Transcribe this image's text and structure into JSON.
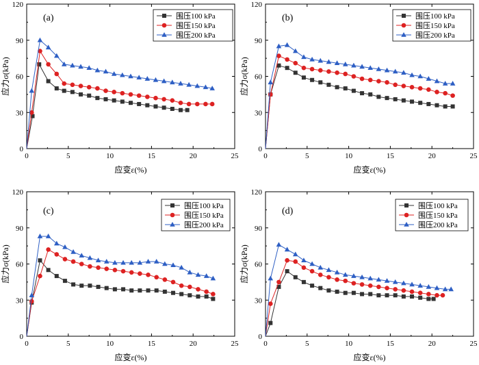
{
  "chart_data": [
    {
      "type": "line",
      "panel_label": "(a)",
      "xlabel": "应变ε(%)",
      "ylabel": "应力σ(kPa)",
      "xlim": [
        0,
        25
      ],
      "ylim": [
        0,
        120
      ],
      "xticks": [
        "0",
        "5",
        "10",
        "15",
        "20",
        "25"
      ],
      "yticks": [
        "0",
        "30",
        "60",
        "90",
        "120"
      ],
      "legend_position": "top-right",
      "series": [
        {
          "name": "围压100 kPa",
          "color": "#333333",
          "marker": "square",
          "x": [
            0,
            0.7,
            1.5,
            2.6,
            3.6,
            4.5,
            5.5,
            6.5,
            7.5,
            8.5,
            9.5,
            10.5,
            11.5,
            12.5,
            13.5,
            14.5,
            15.5,
            16.5,
            17.5,
            18.5,
            19.3
          ],
          "y": [
            0,
            27,
            70,
            56,
            50,
            48,
            47,
            45,
            44,
            42,
            41,
            40,
            39,
            38,
            37,
            36,
            35,
            34,
            33,
            32,
            32
          ]
        },
        {
          "name": "围压150 kPa",
          "color": "#dd2222",
          "marker": "circle",
          "x": [
            0,
            0.6,
            1.6,
            2.6,
            3.6,
            4.5,
            5.5,
            6.5,
            7.5,
            8.5,
            9.5,
            10.5,
            11.5,
            12.5,
            13.5,
            14.5,
            15.5,
            16.5,
            17.5,
            18.5,
            19.5,
            20.5,
            21.5,
            22.3
          ],
          "y": [
            0,
            30,
            81,
            70,
            62,
            54,
            53,
            52,
            51,
            50,
            48,
            47,
            46,
            45,
            44,
            43,
            42,
            41,
            40,
            38,
            37,
            37,
            37,
            37
          ]
        },
        {
          "name": "围压200 kPa",
          "color": "#2e5fc4",
          "marker": "triangle",
          "x": [
            0,
            0.6,
            1.6,
            2.6,
            3.6,
            4.5,
            5.5,
            6.5,
            7.5,
            8.5,
            9.5,
            10.5,
            11.5,
            12.5,
            13.5,
            14.5,
            15.5,
            16.5,
            17.5,
            18.5,
            19.5,
            20.5,
            21.5,
            22.3
          ],
          "y": [
            0,
            48,
            90,
            84,
            77,
            70,
            69,
            68,
            67,
            65,
            64,
            62,
            61,
            60,
            59,
            58,
            57,
            56,
            55,
            54,
            53,
            52,
            51,
            50
          ]
        }
      ]
    },
    {
      "type": "line",
      "panel_label": "(b)",
      "xlabel": "应变ε(%)",
      "ylabel": "应力σ(kPa)",
      "xlim": [
        0,
        25
      ],
      "ylim": [
        0,
        120
      ],
      "xticks": [
        "0",
        "5",
        "10",
        "15",
        "20",
        "25"
      ],
      "yticks": [
        "0",
        "30",
        "60",
        "90",
        "120"
      ],
      "legend_position": "top-right",
      "series": [
        {
          "name": "围压100 kPa",
          "color": "#333333",
          "marker": "square",
          "x": [
            0,
            0.6,
            1.6,
            2.6,
            3.6,
            4.6,
            5.6,
            6.6,
            7.6,
            8.6,
            9.6,
            10.6,
            11.6,
            12.6,
            13.6,
            14.6,
            15.6,
            16.6,
            17.6,
            18.6,
            19.6,
            20.6,
            21.6,
            22.5
          ],
          "y": [
            0,
            45,
            69,
            67,
            63,
            59,
            57,
            55,
            53,
            51,
            50,
            48,
            46,
            45,
            43,
            42,
            41,
            40,
            39,
            38,
            37,
            36,
            35,
            35
          ]
        },
        {
          "name": "围压150 kPa",
          "color": "#dd2222",
          "marker": "circle",
          "x": [
            0,
            0.6,
            1.6,
            2.6,
            3.6,
            4.6,
            5.6,
            6.6,
            7.6,
            8.6,
            9.6,
            10.6,
            11.6,
            12.6,
            13.6,
            14.6,
            15.6,
            16.6,
            17.6,
            18.6,
            19.6,
            20.6,
            21.6,
            22.5
          ],
          "y": [
            0,
            45,
            77,
            74,
            71,
            67,
            66,
            65,
            64,
            63,
            62,
            60,
            58,
            57,
            56,
            55,
            53,
            52,
            51,
            50,
            49,
            47,
            46,
            44
          ]
        },
        {
          "name": "围压200 kPa",
          "color": "#2e5fc4",
          "marker": "triangle",
          "x": [
            0,
            0.6,
            1.6,
            2.6,
            3.6,
            4.6,
            5.6,
            6.6,
            7.6,
            8.6,
            9.6,
            10.6,
            11.6,
            12.6,
            13.6,
            14.6,
            15.6,
            16.6,
            17.6,
            18.6,
            19.6,
            20.6,
            21.6,
            22.5
          ],
          "y": [
            0,
            55,
            85,
            86,
            81,
            76,
            74,
            73,
            72,
            71,
            70,
            69,
            68,
            67,
            66,
            65,
            64,
            63,
            61,
            60,
            58,
            56,
            54,
            54
          ]
        }
      ]
    },
    {
      "type": "line",
      "panel_label": "(c)",
      "xlabel": "应变ε(%)",
      "ylabel": "应力σ(kPa)",
      "xlim": [
        0,
        25
      ],
      "ylim": [
        0,
        120
      ],
      "xticks": [
        "0",
        "5",
        "10",
        "15",
        "20",
        "25"
      ],
      "yticks": [
        "0",
        "30",
        "60",
        "90",
        "120"
      ],
      "legend_position": "top-right",
      "series": [
        {
          "name": "围压100 kPa",
          "color": "#333333",
          "marker": "square",
          "x": [
            0,
            0.6,
            1.6,
            2.6,
            3.6,
            4.6,
            5.6,
            6.6,
            7.6,
            8.6,
            9.6,
            10.6,
            11.6,
            12.6,
            13.6,
            14.6,
            15.6,
            16.6,
            17.6,
            18.6,
            19.6,
            20.6,
            21.6,
            22.4
          ],
          "y": [
            0,
            28,
            63,
            55,
            50,
            46,
            43,
            42,
            42,
            41,
            40,
            39,
            39,
            38,
            38,
            38,
            38,
            37,
            36,
            35,
            34,
            33,
            33,
            31
          ]
        },
        {
          "name": "围压150 kPa",
          "color": "#dd2222",
          "marker": "circle",
          "x": [
            0,
            0.6,
            1.6,
            2.6,
            3.6,
            4.6,
            5.6,
            6.6,
            7.6,
            8.6,
            9.6,
            10.6,
            11.6,
            12.6,
            13.6,
            14.6,
            15.6,
            16.6,
            17.6,
            18.6,
            19.6,
            20.6,
            21.6,
            22.4
          ],
          "y": [
            0,
            29,
            50,
            72,
            68,
            64,
            62,
            60,
            58,
            57,
            56,
            55,
            54,
            53,
            52,
            51,
            49,
            47,
            45,
            42,
            41,
            39,
            37,
            35
          ]
        },
        {
          "name": "围压200 kPa",
          "color": "#2e5fc4",
          "marker": "triangle",
          "x": [
            0,
            0.6,
            1.6,
            2.6,
            3.6,
            4.6,
            5.6,
            6.6,
            7.6,
            8.6,
            9.6,
            10.6,
            11.6,
            12.6,
            13.6,
            14.6,
            15.6,
            16.6,
            17.6,
            18.6,
            19.6,
            20.6,
            21.6,
            22.4
          ],
          "y": [
            0,
            34,
            83,
            83,
            77,
            74,
            70,
            67,
            65,
            63,
            62,
            61,
            61,
            61,
            61,
            62,
            62,
            60,
            59,
            57,
            53,
            51,
            50,
            48
          ]
        }
      ]
    },
    {
      "type": "line",
      "panel_label": "(d)",
      "xlabel": "应变ε(%)",
      "ylabel": "应力σ(kPa)",
      "xlim": [
        0,
        25
      ],
      "ylim": [
        0,
        120
      ],
      "xticks": [
        "0",
        "5",
        "10",
        "15",
        "20",
        "25"
      ],
      "yticks": [
        "0",
        "30",
        "60",
        "90",
        "120"
      ],
      "legend_position": "top-right",
      "series": [
        {
          "name": "围压100 kPa",
          "color": "#333333",
          "marker": "square",
          "x": [
            0,
            0.6,
            1.6,
            2.6,
            3.6,
            4.6,
            5.6,
            6.6,
            7.6,
            8.6,
            9.6,
            10.6,
            11.6,
            12.6,
            13.6,
            14.6,
            15.6,
            16.6,
            17.6,
            18.6,
            19.6,
            20.2
          ],
          "y": [
            0,
            11,
            41,
            54,
            49,
            45,
            42,
            40,
            38,
            37,
            36,
            36,
            35,
            35,
            34,
            34,
            34,
            33,
            33,
            32,
            31,
            31
          ]
        },
        {
          "name": "围压150 kPa",
          "color": "#dd2222",
          "marker": "circle",
          "x": [
            0,
            0.6,
            1.6,
            2.6,
            3.6,
            4.6,
            5.6,
            6.6,
            7.6,
            8.6,
            9.6,
            10.6,
            11.6,
            12.6,
            13.6,
            14.6,
            15.6,
            16.6,
            17.6,
            18.6,
            19.6,
            20.6,
            21.3
          ],
          "y": [
            0,
            27,
            45,
            63,
            62,
            57,
            54,
            51,
            49,
            47,
            46,
            44,
            43,
            42,
            41,
            40,
            39,
            38,
            37,
            36,
            35,
            34,
            34
          ]
        },
        {
          "name": "围压200 kPa",
          "color": "#2e5fc4",
          "marker": "triangle",
          "x": [
            0,
            0.6,
            1.6,
            2.6,
            3.6,
            4.6,
            5.6,
            6.6,
            7.6,
            8.6,
            9.6,
            10.6,
            11.6,
            12.6,
            13.6,
            14.6,
            15.6,
            16.6,
            17.6,
            18.6,
            19.6,
            20.6,
            21.6,
            22.3
          ],
          "y": [
            0,
            48,
            76,
            72,
            68,
            63,
            60,
            57,
            55,
            53,
            51,
            50,
            49,
            48,
            47,
            46,
            45,
            44,
            43,
            42,
            41,
            40,
            39,
            39
          ]
        }
      ]
    }
  ]
}
